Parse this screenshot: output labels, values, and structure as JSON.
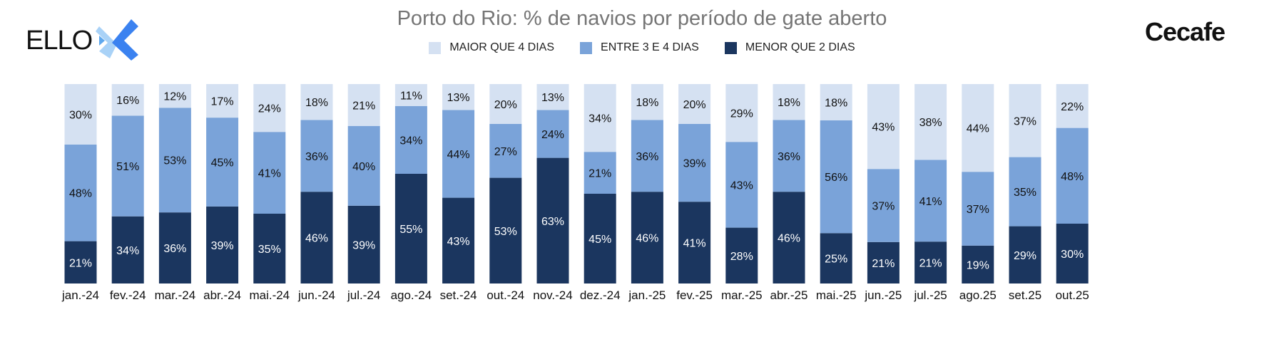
{
  "logos": {
    "left": "ELLO",
    "right": "Cecafe"
  },
  "colors": {
    "maior": "#d5e1f2",
    "entre": "#7aa3d9",
    "menor": "#1b365f"
  },
  "chart_data": {
    "type": "bar",
    "stacked": true,
    "title": "Porto do Rio: % de navios por período de gate aberto",
    "legend_position": "top",
    "categories": [
      "jan.-24",
      "fev.-24",
      "mar.-24",
      "abr.-24",
      "mai.-24",
      "jun.-24",
      "jul.-24",
      "ago.-24",
      "set.-24",
      "out.-24",
      "nov.-24",
      "dez.-24",
      "jan.-25",
      "fev.-25",
      "mar.-25",
      "abr.-25",
      "mai.-25",
      "jun.-25",
      "jul.-25",
      "ago.25",
      "set.25",
      "out.25"
    ],
    "series": [
      {
        "name": "MENOR QUE 2 DIAS",
        "color_key": "menor",
        "values": [
          21,
          34,
          36,
          39,
          35,
          46,
          39,
          55,
          43,
          53,
          63,
          45,
          46,
          41,
          28,
          46,
          25,
          21,
          21,
          19,
          29,
          30
        ]
      },
      {
        "name": "ENTRE 3 E 4 DIAS",
        "color_key": "entre",
        "values": [
          48,
          51,
          53,
          45,
          41,
          36,
          40,
          34,
          44,
          27,
          24,
          21,
          36,
          39,
          43,
          36,
          56,
          37,
          41,
          37,
          35,
          48
        ]
      },
      {
        "name": "MAIOR QUE 4 DIAS",
        "color_key": "maior",
        "values": [
          30,
          16,
          12,
          17,
          24,
          18,
          21,
          11,
          13,
          20,
          13,
          34,
          18,
          20,
          29,
          18,
          18,
          43,
          38,
          44,
          37,
          22
        ]
      }
    ],
    "legend_order": [
      "MAIOR QUE 4 DIAS",
      "ENTRE 3 E 4 DIAS",
      "MENOR QUE 2 DIAS"
    ],
    "value_suffix": "%",
    "ylim": [
      0,
      100
    ]
  }
}
